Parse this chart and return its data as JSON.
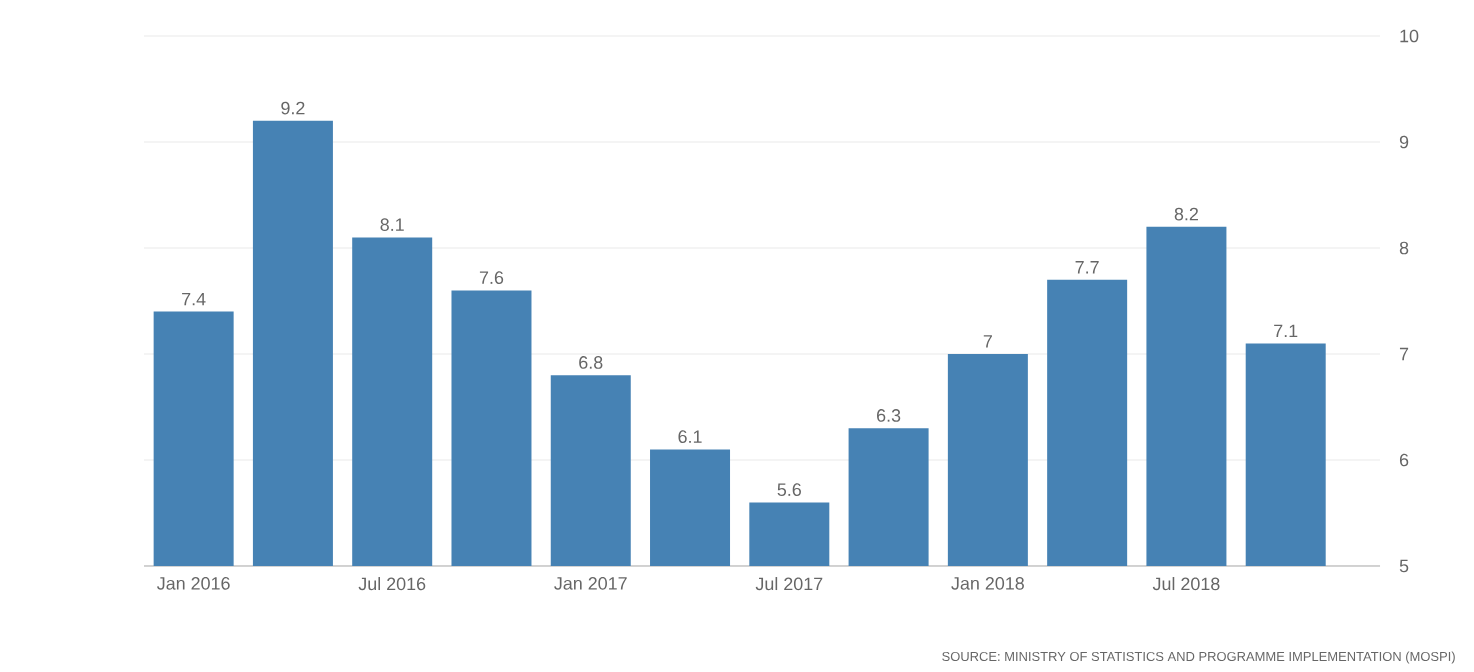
{
  "chart_data": {
    "type": "bar",
    "categories": [
      "Jan 2016",
      null,
      "Jul 2016",
      null,
      "Jan 2017",
      null,
      "Jul 2017",
      null,
      "Jan 2018",
      null,
      "Jul 2018",
      null
    ],
    "values": [
      7.4,
      9.2,
      8.1,
      7.6,
      6.8,
      6.1,
      5.6,
      6.3,
      7,
      7.7,
      8.2,
      7.1
    ],
    "color": "#4682b4",
    "ylim": [
      5,
      10
    ],
    "yticks": [
      5,
      6,
      7,
      8,
      9,
      10
    ],
    "grid": "y",
    "data_labels": true,
    "annotations": [
      "SOURCE: MINISTRY OF STATISTICS AND PROGRAMME IMPLEMENTATION (MOSPI)"
    ]
  }
}
